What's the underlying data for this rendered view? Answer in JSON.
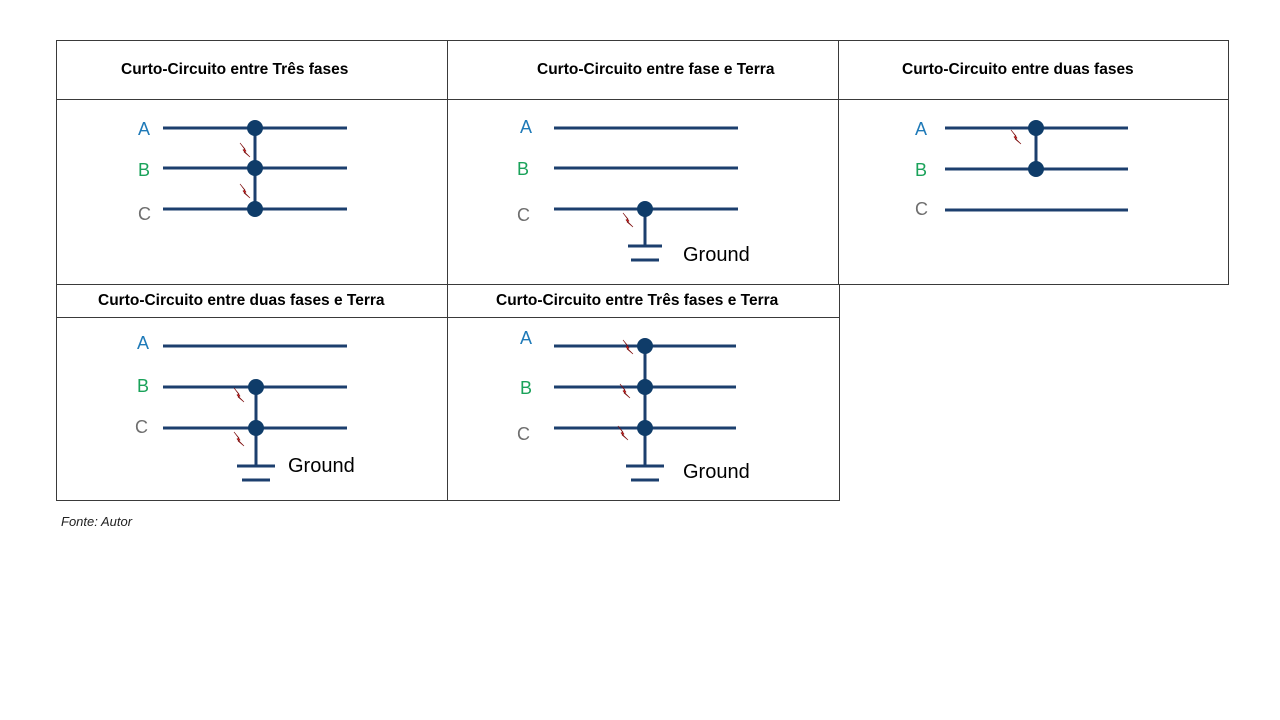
{
  "colors": {
    "line": "#1c3f6e",
    "node": "#0f3c69",
    "phase_a": "#1f7ab8",
    "phase_b": "#1aa25a",
    "phase_c": "#6e6e6e",
    "bolt": "#e02020"
  },
  "ground_label": "Ground",
  "phase_labels": {
    "a": "A",
    "b": "B",
    "c": "C"
  },
  "source": "Fonte: Autor",
  "panels": [
    {
      "id": "tres-fases",
      "title": "Curto-Circuito entre Três fases",
      "fault_phases": [
        "A",
        "B",
        "C"
      ],
      "ground": false
    },
    {
      "id": "fase-terra",
      "title": "Curto-Circuito entre fase e Terra",
      "fault_phases": [
        "C"
      ],
      "ground": true
    },
    {
      "id": "duas-fases",
      "title": "Curto-Circuito entre duas fases",
      "fault_phases": [
        "A",
        "B"
      ],
      "ground": false
    },
    {
      "id": "duas-fases-terra",
      "title": "Curto-Circuito entre duas fases e Terra",
      "fault_phases": [
        "B",
        "C"
      ],
      "ground": true
    },
    {
      "id": "tres-fases-terra",
      "title": "Curto-Circuito entre Três fases e Terra",
      "fault_phases": [
        "A",
        "B",
        "C"
      ],
      "ground": true
    }
  ]
}
